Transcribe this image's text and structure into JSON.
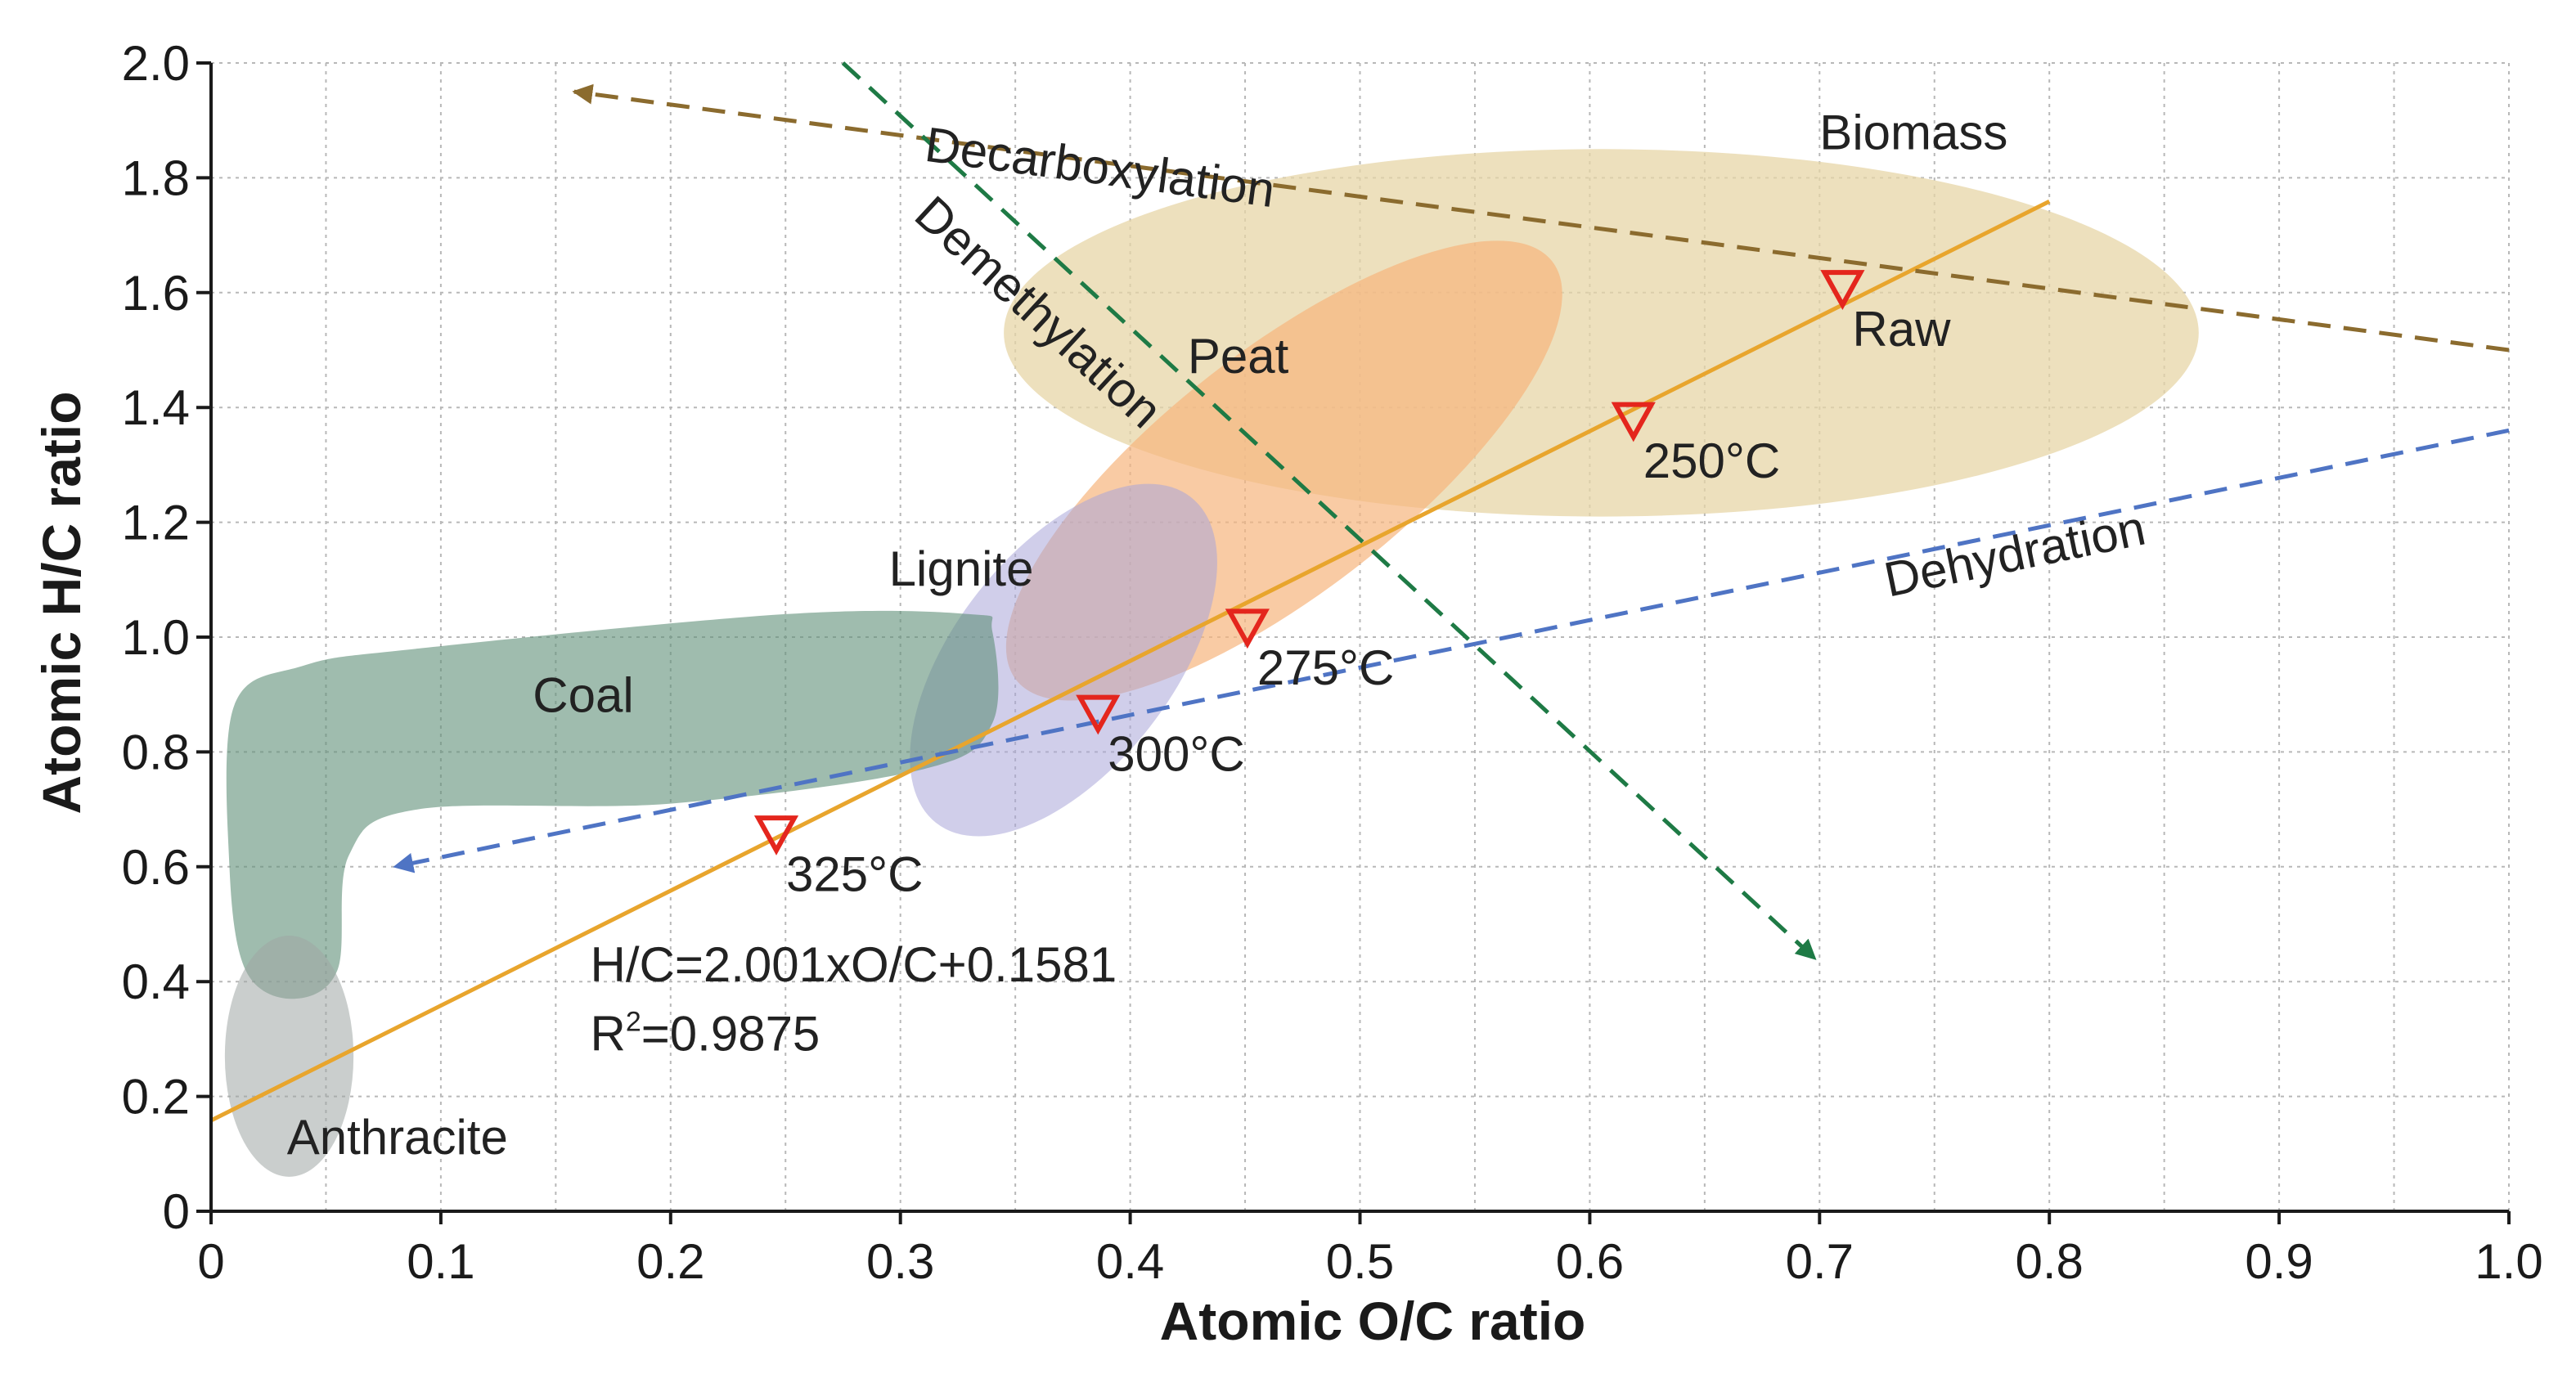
{
  "chart_data": {
    "type": "scatter",
    "xlabel": "Atomic O/C ratio",
    "ylabel": "Atomic H/C ratio",
    "xlim": [
      0,
      1.0
    ],
    "ylim": [
      0,
      2.0
    ],
    "x_ticks": [
      0,
      0.1,
      0.2,
      0.3,
      0.4,
      0.5,
      0.6,
      0.7,
      0.8,
      0.9,
      1.0
    ],
    "x_tick_labels": [
      "0",
      "0.1",
      "0.2",
      "0.3",
      "0.4",
      "0.5",
      "0.6",
      "0.7",
      "0.8",
      "0.9",
      "1.0"
    ],
    "y_ticks": [
      0,
      0.2,
      0.4,
      0.6,
      0.8,
      1.0,
      1.2,
      1.4,
      1.6,
      1.8,
      2.0
    ],
    "y_tick_labels": [
      "0",
      "0.2",
      "0.4",
      "0.6",
      "0.8",
      "1.0",
      "1.2",
      "1.4",
      "1.6",
      "1.8",
      "2.0"
    ],
    "grid": true,
    "regions": [
      {
        "label": "Biomass",
        "shape": "ellipse",
        "cx": 0.605,
        "cy": 1.53,
        "rx": 0.26,
        "ry": 0.32,
        "rotate": 0,
        "color": "#e7d5a7",
        "opacity": 0.75,
        "label_at": [
          0.7,
          1.85
        ]
      },
      {
        "label": "Peat",
        "shape": "ellipse",
        "cx": 0.467,
        "cy": 1.29,
        "rx": 0.148,
        "ry": 0.21,
        "rotate": -38,
        "color": "#f6b57d",
        "opacity": 0.7,
        "label_at": [
          0.425,
          1.46
        ]
      },
      {
        "label": "Lignite",
        "shape": "ellipse",
        "cx": 0.371,
        "cy": 0.96,
        "rx": 0.09,
        "ry": 0.19,
        "rotate": -52,
        "color": "#a9a6d9",
        "opacity": 0.55,
        "label_at": [
          0.295,
          1.09
        ]
      },
      {
        "label": "Coal",
        "shape": "path",
        "color": "#5f8f78",
        "opacity": 0.6,
        "outline": [
          [
            0.34,
            1.01
          ],
          [
            0.33,
            1.04
          ],
          [
            0.25,
            1.04
          ],
          [
            0.09,
            0.98
          ],
          [
            0.04,
            0.95
          ],
          [
            0.01,
            0.88
          ],
          [
            0.008,
            0.6
          ],
          [
            0.015,
            0.42
          ],
          [
            0.035,
            0.37
          ],
          [
            0.055,
            0.42
          ],
          [
            0.06,
            0.62
          ],
          [
            0.09,
            0.7
          ],
          [
            0.2,
            0.71
          ],
          [
            0.31,
            0.77
          ],
          [
            0.34,
            0.85
          ]
        ],
        "label_at": [
          0.14,
          0.87
        ]
      },
      {
        "label": "Anthracite",
        "shape": "ellipse",
        "cx": 0.034,
        "cy": 0.27,
        "rx": 0.028,
        "ry": 0.21,
        "rotate": 0,
        "color": "#9ea6a4",
        "opacity": 0.55,
        "label_at": [
          0.033,
          0.1
        ]
      }
    ],
    "fit_line": {
      "equation": "H/C=2.001xO/C+0.1581",
      "r2_label": "R",
      "r2_superscript": "2",
      "r2_value": "=0.9875",
      "slope": 2.001,
      "intercept": 0.1581,
      "x_range": [
        0,
        0.8
      ],
      "color": "#e8a52d",
      "label_at": [
        0.165,
        0.4
      ]
    },
    "process_arrows": [
      {
        "label": "Decarboxylation",
        "color": "#8b6b2e",
        "from": [
          1.0,
          1.5
        ],
        "to": [
          0.158,
          1.95
        ],
        "arrowhead": "end",
        "label_at": [
          0.31,
          1.83
        ]
      },
      {
        "label": "Demethylation",
        "color": "#1e7a45",
        "from": [
          0.275,
          2.0
        ],
        "to": [
          0.698,
          0.44
        ],
        "arrowhead": "end",
        "label_at": [
          0.305,
          1.73
        ]
      },
      {
        "label": "Dehydration",
        "color": "#4f74c4",
        "from": [
          1.0,
          1.36
        ],
        "to": [
          0.08,
          0.6
        ],
        "arrowhead": "end",
        "label_at": [
          0.73,
          1.07
        ]
      }
    ],
    "series": [
      {
        "marker": "triangle-down-open",
        "color": "#e4261d",
        "points": [
          {
            "label": "Raw",
            "x": 0.71,
            "y": 1.61
          },
          {
            "label": "250°C",
            "x": 0.619,
            "y": 1.38
          },
          {
            "label": "275°C",
            "x": 0.451,
            "y": 1.02
          },
          {
            "label": "300°C",
            "x": 0.386,
            "y": 0.87
          },
          {
            "label": "325°C",
            "x": 0.246,
            "y": 0.66
          }
        ]
      }
    ]
  }
}
